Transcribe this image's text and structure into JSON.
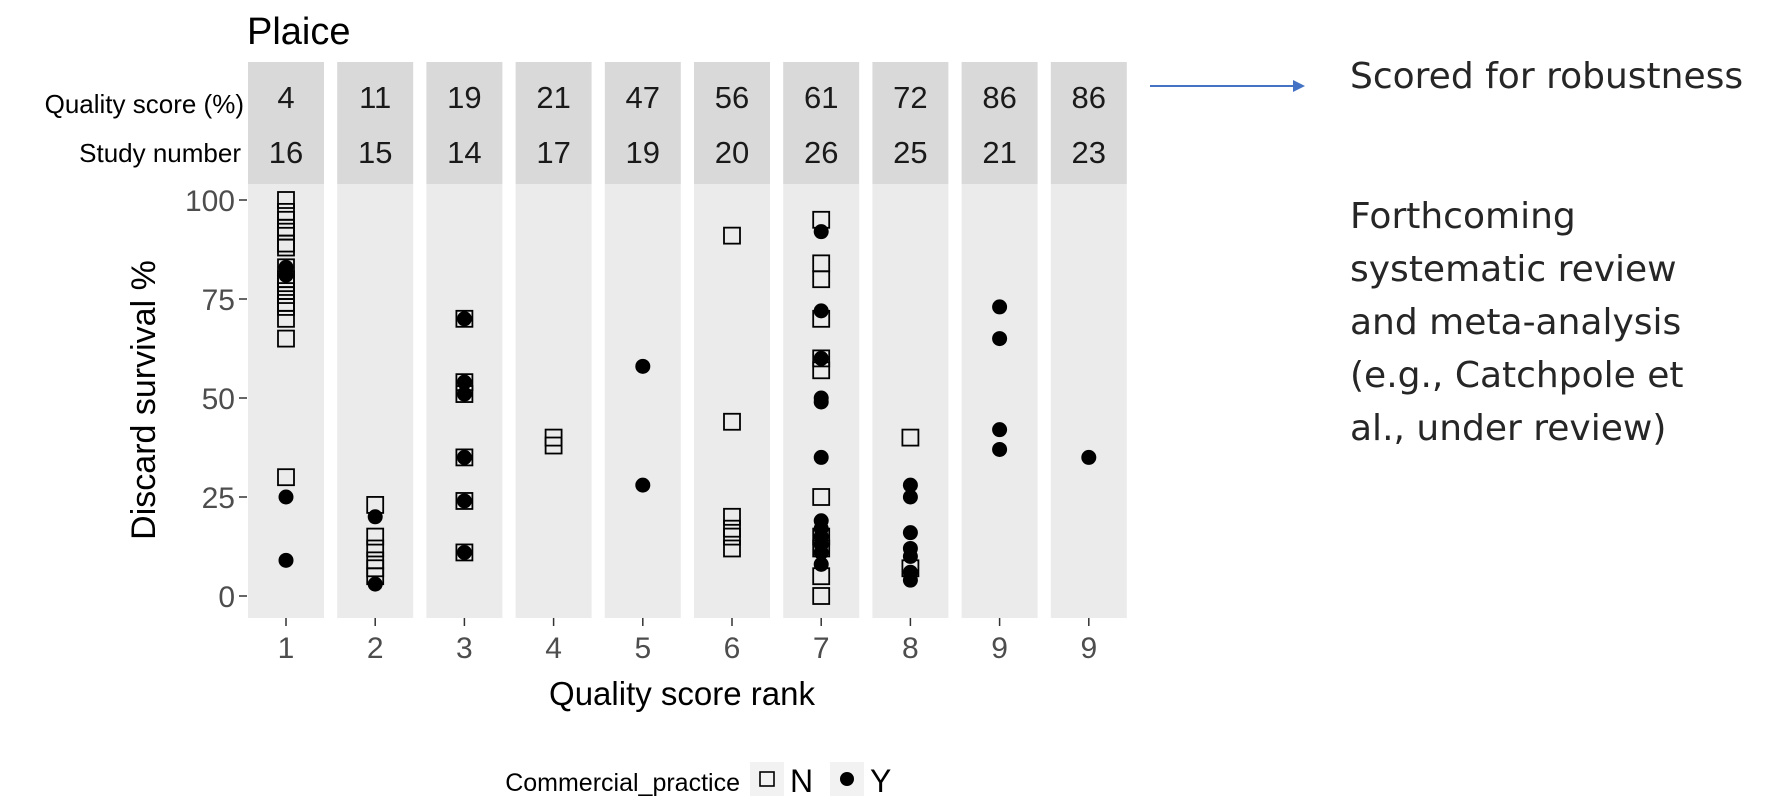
{
  "chart_data": {
    "type": "scatter",
    "title": "Plaice",
    "xlabel": "Quality score rank",
    "ylabel": "Discard survival %",
    "ylim": [
      0,
      100
    ],
    "yticks": [
      0,
      25,
      50,
      75,
      100
    ],
    "grid": false,
    "legend": {
      "title": "Commercial_practice",
      "position": "bottom",
      "entries": [
        "N",
        "Y"
      ]
    },
    "header_row_labels": {
      "quality": "Quality score (%)",
      "study": "Study number"
    },
    "panels": [
      {
        "rank": "1",
        "quality_score": "4",
        "study_number": "16",
        "N": [
          65,
          70,
          73,
          74,
          76,
          77,
          79,
          80,
          83,
          88,
          89,
          92,
          93,
          95,
          97,
          100,
          30
        ],
        "Y": [
          83,
          81,
          25,
          9
        ]
      },
      {
        "rank": "2",
        "quality_score": "11",
        "study_number": "15",
        "N": [
          23,
          15,
          12,
          9,
          7,
          5
        ],
        "Y": [
          20,
          3
        ]
      },
      {
        "rank": "3",
        "quality_score": "19",
        "study_number": "14",
        "N": [
          70,
          54,
          51,
          35,
          24,
          11
        ],
        "Y": [
          70,
          54,
          51,
          35,
          24,
          11
        ]
      },
      {
        "rank": "4",
        "quality_score": "21",
        "study_number": "17",
        "N": [
          40,
          38
        ],
        "Y": []
      },
      {
        "rank": "5",
        "quality_score": "47",
        "study_number": "19",
        "N": [],
        "Y": [
          58,
          28
        ]
      },
      {
        "rank": "6",
        "quality_score": "56",
        "study_number": "20",
        "N": [
          91,
          44,
          20,
          17,
          15,
          12
        ],
        "Y": []
      },
      {
        "rank": "7",
        "quality_score": "61",
        "study_number": "26",
        "N": [
          95,
          84,
          80,
          70,
          60,
          57,
          25,
          15,
          12,
          5,
          0
        ],
        "Y": [
          92,
          72,
          60,
          50,
          49,
          35,
          19,
          17,
          15,
          13,
          11,
          8
        ]
      },
      {
        "rank": "8",
        "quality_score": "72",
        "study_number": "25",
        "N": [
          40,
          7
        ],
        "Y": [
          28,
          25,
          16,
          12,
          10,
          6,
          4
        ]
      },
      {
        "rank": "9",
        "quality_score": "86",
        "study_number": "21",
        "N": [],
        "Y": [
          73,
          65,
          42,
          37
        ]
      },
      {
        "rank": "9",
        "quality_score": "86",
        "study_number": "23",
        "N": [],
        "Y": [
          35
        ]
      }
    ]
  },
  "annotation": {
    "arrow_text": "Scored for robustness",
    "note_lines": [
      "Forthcoming",
      "systematic review",
      "and meta-analysis",
      "(e.g., Catchpole et",
      "al., under review)"
    ]
  }
}
